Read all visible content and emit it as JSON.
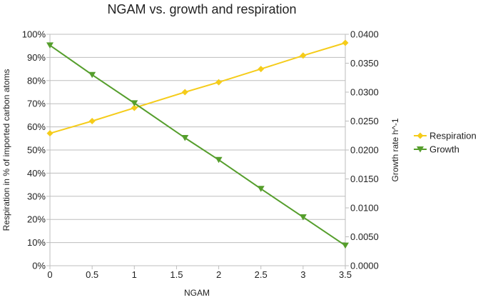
{
  "chart_data": {
    "type": "line",
    "title": "NGAM vs. growth and respiration",
    "xlabel": "NGAM",
    "ylabel_left": "Respiration in % of imported carbon atoms",
    "ylabel_right": "Growth rate h^-1",
    "xlim": [
      0,
      3.5
    ],
    "ylim_left": [
      0,
      100
    ],
    "ylim_right": [
      0,
      0.04
    ],
    "x_ticks": [
      "0",
      "0.5",
      "1",
      "1.5",
      "2",
      "2.5",
      "3",
      "3.5"
    ],
    "y_left_ticks": [
      "0%",
      "10%",
      "20%",
      "30%",
      "40%",
      "50%",
      "60%",
      "70%",
      "80%",
      "90%",
      "100%"
    ],
    "y_right_ticks": [
      "0.0000",
      "0.0050",
      "0.0100",
      "0.0150",
      "0.0200",
      "0.0250",
      "0.0300",
      "0.0350",
      "0.0400"
    ],
    "grid": "horizontal",
    "legend_position": "right",
    "series": [
      {
        "name": "Respiration",
        "axis": "left",
        "color": "#f5cc1a",
        "marker": "diamond",
        "x": [
          0,
          0.5,
          1,
          1.6,
          2,
          2.5,
          3,
          3.5
        ],
        "y": [
          57.2,
          62.5,
          68.2,
          75.0,
          79.3,
          85.0,
          90.8,
          96.3
        ]
      },
      {
        "name": "Growth",
        "axis": "right",
        "color": "#559e2c",
        "marker": "triangle-down",
        "x": [
          0,
          0.5,
          1,
          1.6,
          2,
          2.5,
          3,
          3.5
        ],
        "y": [
          0.0381,
          0.033,
          0.0281,
          0.0221,
          0.0183,
          0.0133,
          0.0084,
          0.0035
        ]
      }
    ]
  }
}
